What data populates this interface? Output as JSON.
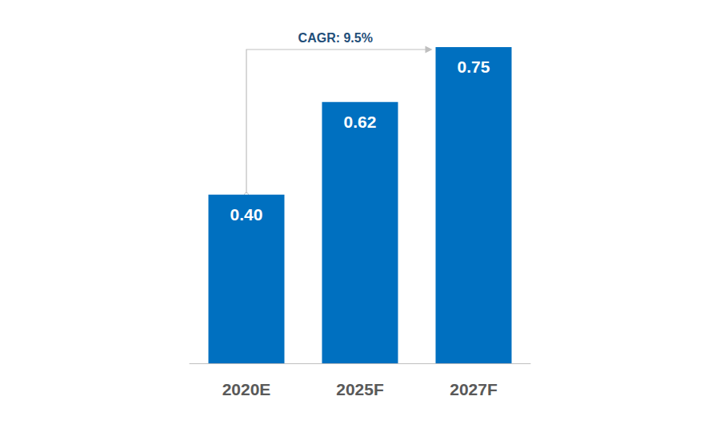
{
  "chart_data": {
    "type": "bar",
    "categories": [
      "2020E",
      "2025F",
      "2027F"
    ],
    "values": [
      0.4,
      0.62,
      0.75
    ],
    "value_labels": [
      "0.40",
      "0.62",
      "0.75"
    ],
    "color": "#0070c0",
    "ylim": [
      0,
      0.75
    ],
    "grid": false,
    "data_labels": true,
    "tick_labels": "x",
    "annotation": {
      "text": "CAGR: 9.5%",
      "from": "2020E",
      "to": "2027F"
    }
  }
}
